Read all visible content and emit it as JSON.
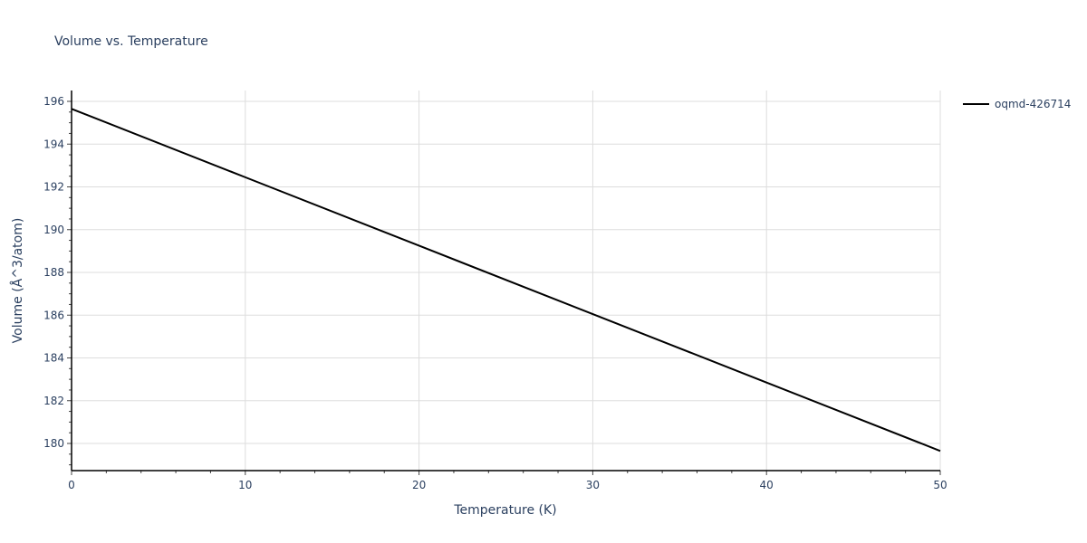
{
  "chart_data": {
    "type": "line",
    "title": "Volume vs. Temperature",
    "xlabel": "Temperature (K)",
    "ylabel": "Volume (Å^3/atom)",
    "xlim": [
      0,
      50
    ],
    "ylim": [
      178.8,
      196.5
    ],
    "x_ticks": [
      0,
      10,
      20,
      30,
      40,
      50
    ],
    "y_ticks": [
      180,
      182,
      184,
      186,
      188,
      190,
      192,
      194,
      196
    ],
    "grid": true,
    "legend_position": "top-right-outside",
    "series": [
      {
        "name": "oqmd-426714",
        "color": "#000000",
        "x": [
          0,
          10,
          20,
          30,
          40,
          50
        ],
        "y": [
          195.65,
          192.45,
          189.25,
          186.05,
          182.85,
          179.65
        ]
      }
    ]
  },
  "legend": {
    "items": [
      {
        "label": "oqmd-426714",
        "color": "#000000"
      }
    ]
  }
}
